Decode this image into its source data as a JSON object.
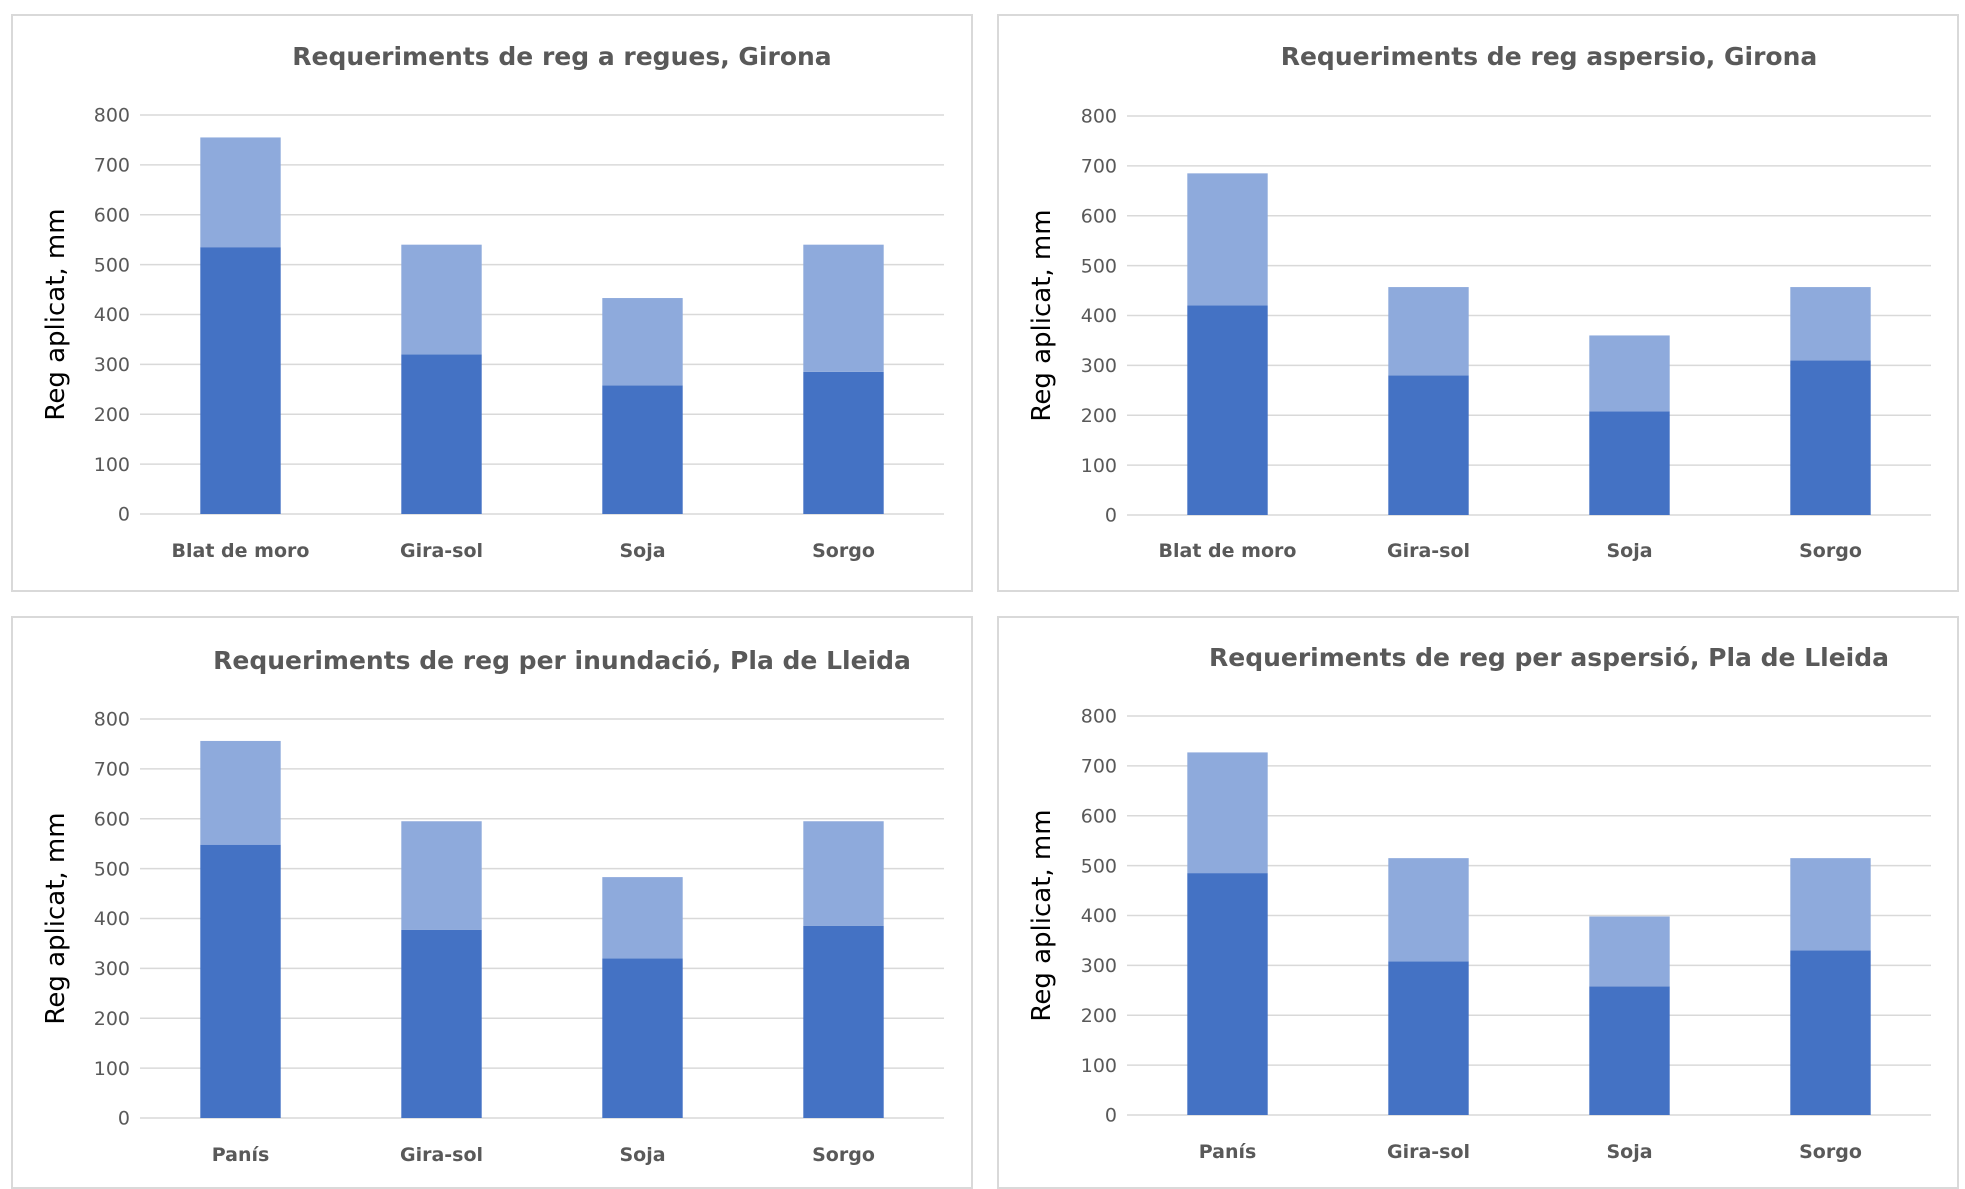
{
  "colors": {
    "base": "#4472c4",
    "top": "#8eaadc"
  },
  "chart_data": [
    {
      "type": "bar",
      "stacked": true,
      "title": "Requeriments de reg a regues, Girona",
      "ylabel": "Reg aplicat, mm",
      "ylim": [
        0,
        800
      ],
      "yticks": [
        0,
        100,
        200,
        300,
        400,
        500,
        600,
        700,
        800
      ],
      "categories": [
        "Blat de moro",
        "Gira-sol",
        "Soja",
        "Sorgo"
      ],
      "series": [
        {
          "values": [
            535,
            320,
            258,
            285
          ]
        },
        {
          "values": [
            220,
            220,
            175,
            255
          ]
        }
      ],
      "grid": true
    },
    {
      "type": "bar",
      "stacked": true,
      "title": "Requeriments de reg aspersio, Girona",
      "ylabel": "Reg aplicat, mm",
      "ylim": [
        0,
        800
      ],
      "yticks": [
        0,
        100,
        200,
        300,
        400,
        500,
        600,
        700,
        800
      ],
      "categories": [
        "Blat de moro",
        "Gira-sol",
        "Soja",
        "Sorgo"
      ],
      "series": [
        {
          "values": [
            420,
            280,
            208,
            310
          ]
        },
        {
          "values": [
            265,
            177,
            152,
            147
          ]
        }
      ],
      "grid": true
    },
    {
      "type": "bar",
      "stacked": true,
      "title": "Requeriments de reg per inundació,  Pla de Lleida",
      "ylabel": "Reg aplicat, mm",
      "ylim": [
        0,
        800
      ],
      "yticks": [
        0,
        100,
        200,
        300,
        400,
        500,
        600,
        700,
        800
      ],
      "categories": [
        "Panís",
        "Gira-sol",
        "Soja",
        "Sorgo"
      ],
      "series": [
        {
          "values": [
            548,
            377,
            320,
            385
          ]
        },
        {
          "values": [
            208,
            218,
            163,
            210
          ]
        }
      ],
      "grid": true
    },
    {
      "type": "bar",
      "stacked": true,
      "title": "Requeriments de reg per aspersió, Pla de Lleida",
      "ylabel": "Reg aplicat, mm",
      "ylim": [
        0,
        800
      ],
      "yticks": [
        0,
        100,
        200,
        300,
        400,
        500,
        600,
        700,
        800
      ],
      "categories": [
        "Panís",
        "Gira-sol",
        "Soja",
        "Sorgo"
      ],
      "series": [
        {
          "values": [
            485,
            308,
            258,
            330
          ]
        },
        {
          "values": [
            242,
            207,
            140,
            185
          ]
        }
      ],
      "grid": true
    }
  ]
}
